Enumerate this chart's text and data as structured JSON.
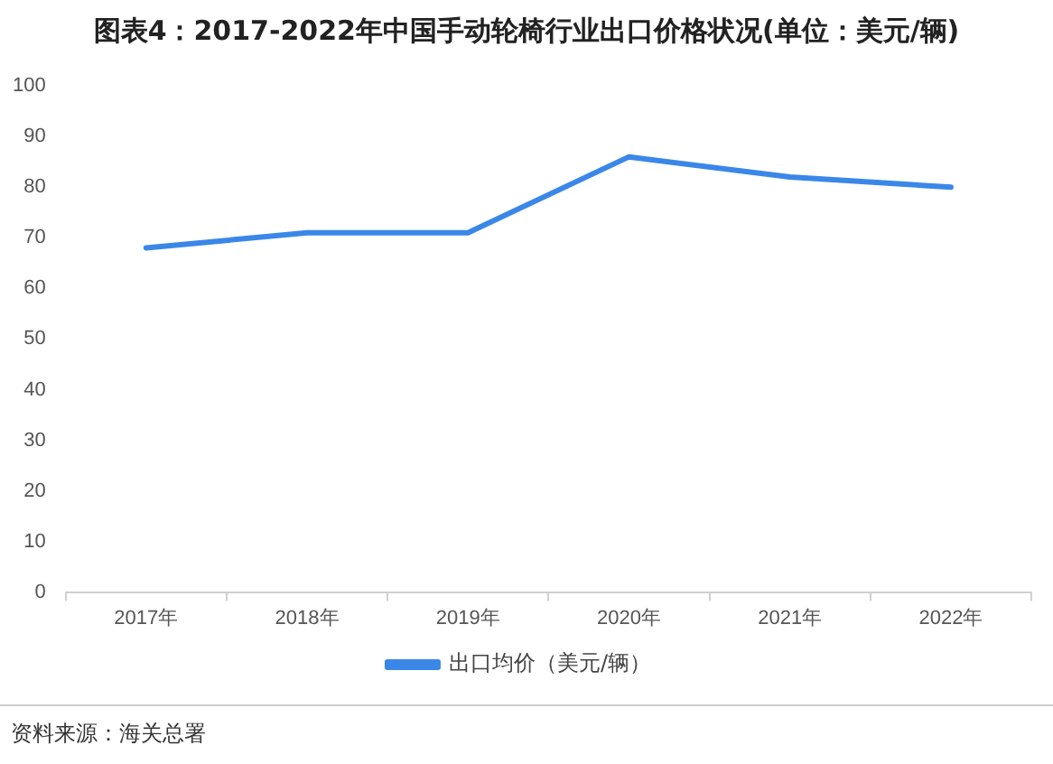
{
  "chart_data": {
    "type": "line",
    "title": "图表4：2017-2022年中国手动轮椅行业出口价格状况(单位：美元/辆)",
    "categories": [
      "2017年",
      "2018年",
      "2019年",
      "2020年",
      "2021年",
      "2022年"
    ],
    "series": [
      {
        "name": "出口均价（美元/辆）",
        "color": "#3a87e8",
        "values": [
          68,
          71,
          71,
          86,
          82,
          80
        ]
      }
    ],
    "ylim": [
      0,
      100
    ],
    "yticks": [
      0,
      10,
      20,
      30,
      40,
      50,
      60,
      70,
      80,
      90,
      100
    ],
    "grid": false,
    "legend": "bottom",
    "marker": "none",
    "line_style": "solid",
    "annotations": [
      "资料来源：海关总署"
    ]
  }
}
